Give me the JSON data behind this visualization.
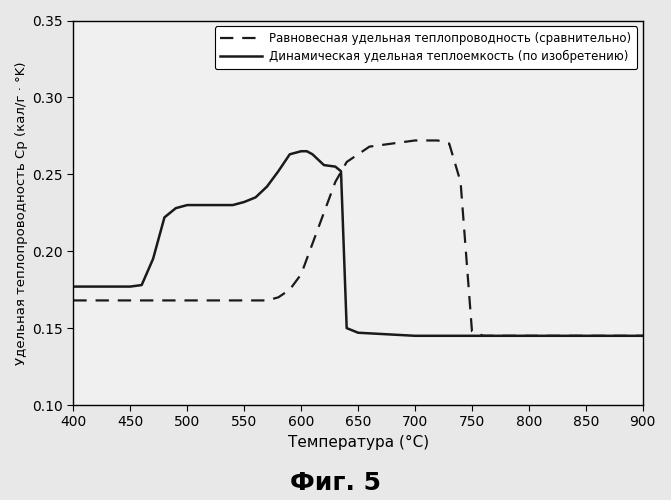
{
  "title": "Фиг. 5",
  "xlabel": "Температура (°С)",
  "ylabel": "Удельная теплопроводность Cp (кал/г · °K)",
  "xlim": [
    400,
    900
  ],
  "ylim": [
    0.1,
    0.35
  ],
  "xticks": [
    400,
    450,
    500,
    550,
    600,
    650,
    700,
    750,
    800,
    850,
    900
  ],
  "yticks": [
    0.1,
    0.15,
    0.2,
    0.25,
    0.3,
    0.35
  ],
  "legend1": "Равновесная удельная теплопроводность (сравнительно)",
  "legend2": "Динамическая удельная теплоемкость (по изобретению)",
  "dashed_x": [
    400,
    450,
    460,
    470,
    480,
    490,
    500,
    520,
    550,
    570,
    580,
    590,
    600,
    610,
    620,
    630,
    640,
    660,
    680,
    700,
    720,
    730,
    740,
    750,
    760,
    800,
    850,
    900
  ],
  "dashed_y": [
    0.168,
    0.168,
    0.168,
    0.168,
    0.168,
    0.168,
    0.168,
    0.168,
    0.168,
    0.168,
    0.17,
    0.175,
    0.185,
    0.205,
    0.225,
    0.245,
    0.258,
    0.268,
    0.27,
    0.272,
    0.272,
    0.27,
    0.245,
    0.148,
    0.145,
    0.145,
    0.145,
    0.145
  ],
  "solid_x": [
    400,
    430,
    450,
    460,
    470,
    480,
    490,
    500,
    510,
    520,
    530,
    540,
    550,
    560,
    570,
    580,
    590,
    600,
    605,
    610,
    620,
    630,
    635,
    640,
    650,
    700,
    750,
    800,
    850,
    900
  ],
  "solid_y": [
    0.177,
    0.177,
    0.177,
    0.178,
    0.195,
    0.222,
    0.228,
    0.23,
    0.23,
    0.23,
    0.23,
    0.23,
    0.232,
    0.235,
    0.242,
    0.252,
    0.263,
    0.265,
    0.265,
    0.263,
    0.256,
    0.255,
    0.252,
    0.15,
    0.147,
    0.145,
    0.145,
    0.145,
    0.145,
    0.145
  ],
  "line_color": "#1a1a1a",
  "bg_color": "#e8e8e8"
}
